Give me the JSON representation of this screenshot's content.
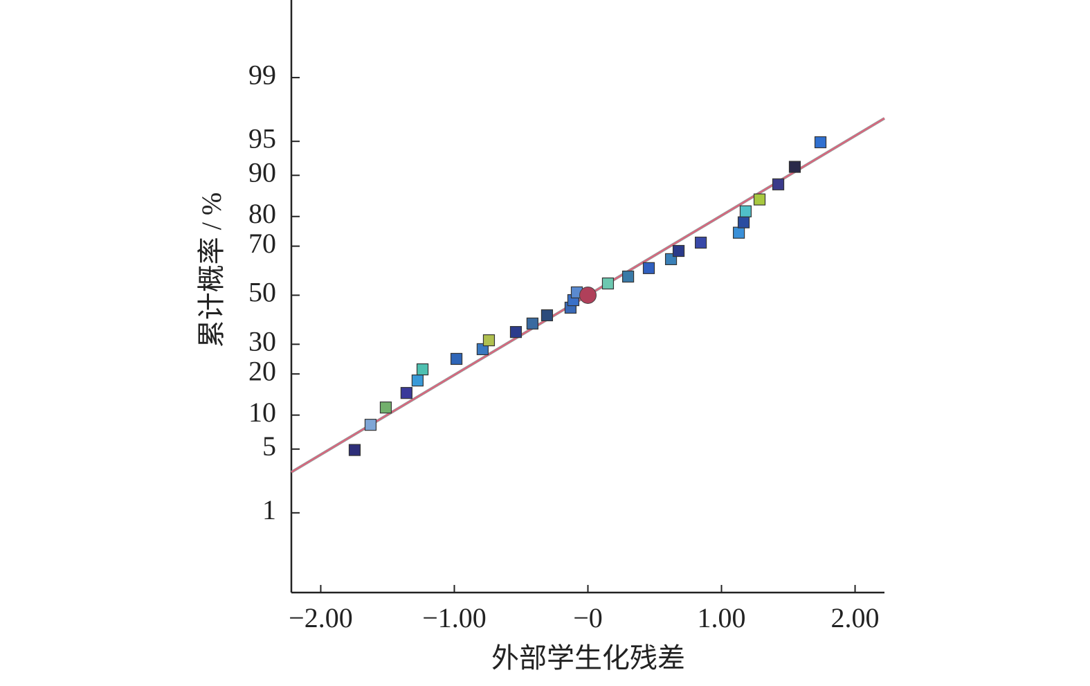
{
  "chart_data": {
    "type": "scatter",
    "x_label": "外部学生化残差",
    "y_label": "累计概率 / %",
    "yscale": "probit",
    "xlim": [
      -2.22,
      2.22
    ],
    "ylim": [
      0.074,
      99.92
    ],
    "xticks": [
      {
        "value": -2,
        "label": "−2.00"
      },
      {
        "value": -1,
        "label": "−1.00"
      },
      {
        "value": 0,
        "label": "−0"
      },
      {
        "value": 1,
        "label": "1.00"
      },
      {
        "value": 2,
        "label": "2.00"
      }
    ],
    "yticks": [
      1,
      5,
      10,
      20,
      30,
      50,
      70,
      80,
      90,
      95,
      99
    ],
    "points": {
      "x": [
        -1.746,
        -1.627,
        -1.513,
        -1.358,
        -1.275,
        -1.238,
        -0.984,
        -0.788,
        -0.741,
        -0.539,
        -0.415,
        -0.306,
        -0.13,
        -0.109,
        -0.083,
        0.15,
        0.301,
        0.456,
        0.622,
        0.679,
        0.845,
        1.13,
        1.166,
        1.181,
        1.285,
        1.425,
        1.549,
        1.741
      ],
      "values": [
        4.9,
        8.3,
        11.5,
        14.8,
        18.1,
        21.4,
        24.8,
        28.2,
        31.5,
        34.7,
        38.1,
        41.5,
        44.7,
        47.9,
        51.2,
        55.0,
        57.9,
        61.4,
        65.0,
        68.2,
        71.3,
        74.8,
        78.2,
        81.5,
        84.7,
        88.2,
        91.5,
        94.9
      ],
      "colors": [
        "#2e2f7a",
        "#7fa6d6",
        "#72b06c",
        "#3a3a9a",
        "#3a9ad8",
        "#4ec0b0",
        "#2f66b8",
        "#3a78c0",
        "#b0c050",
        "#2c3c8c",
        "#3a6aa0",
        "#2c4c7c",
        "#3a6ab8",
        "#3a70c8",
        "#5a8ad0",
        "#6cc8b0",
        "#3a7aa8",
        "#3060c0",
        "#3a80b8",
        "#2a3a8a",
        "#3848a8",
        "#3a90d8",
        "#2a4ca0",
        "#50c0c8",
        "#a8c840",
        "#3a3a8a",
        "#2a2a4a",
        "#3070d0"
      ]
    },
    "mean_point": {
      "x": 0,
      "value": 50,
      "color": "#b0405a"
    },
    "fit_line": {
      "x": [
        -2.22,
        2.22
      ],
      "values": [
        2.93,
        97.07
      ],
      "color": "#e0607a"
    }
  }
}
